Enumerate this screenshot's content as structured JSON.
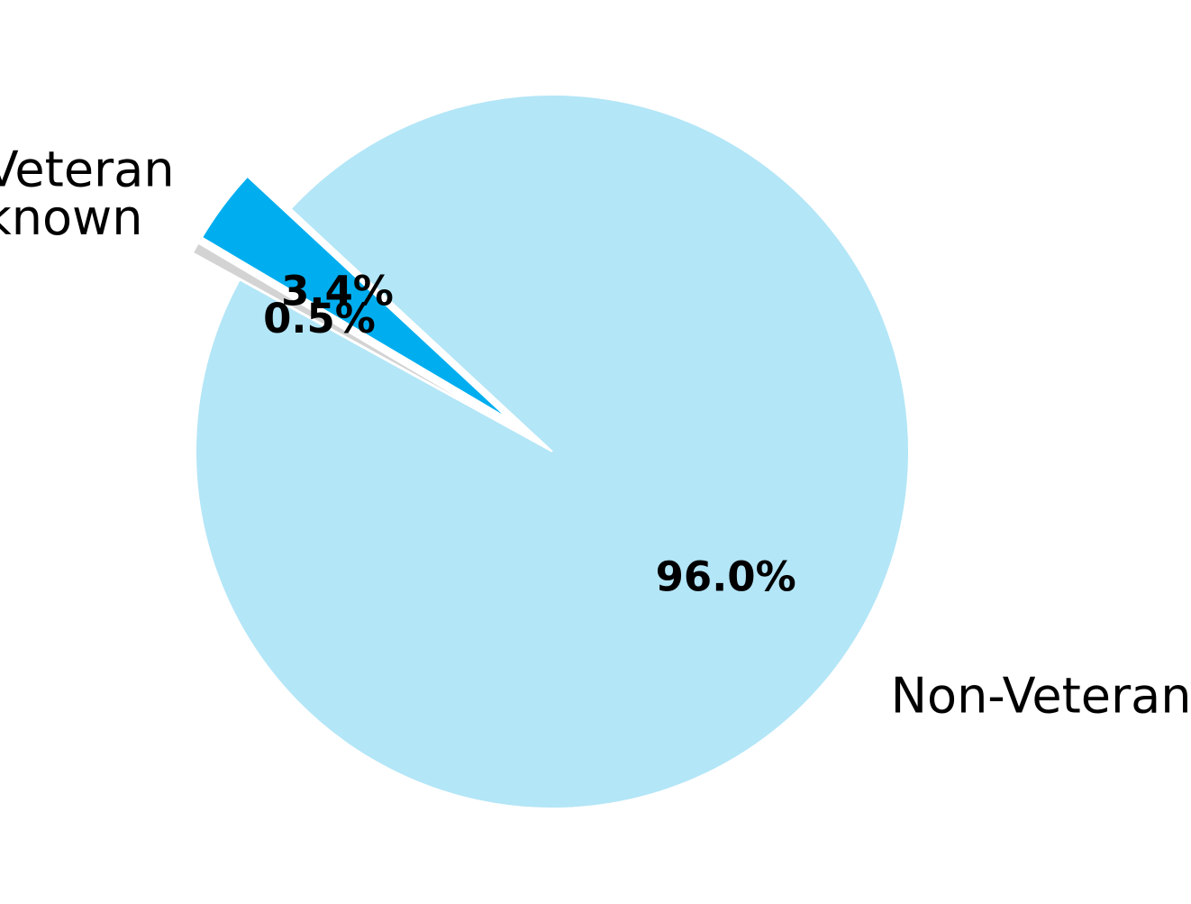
{
  "chart_data": {
    "type": "pie",
    "title": "",
    "slices": [
      {
        "name": "Non-Veteran",
        "value": 96.0,
        "pct_label": "96.0%",
        "color": "#b3e6f7",
        "exploded": false
      },
      {
        "name": "Veteran",
        "value": 3.4,
        "pct_label": "3.4%",
        "color": "#00aeef",
        "exploded": true
      },
      {
        "name": "Unknown",
        "value": 0.5,
        "pct_label": "0.5%",
        "color": "#d3d3d3",
        "exploded": true
      }
    ],
    "legend": "none",
    "start_angle_deg": 151.2,
    "direction": "counterclockwise"
  }
}
